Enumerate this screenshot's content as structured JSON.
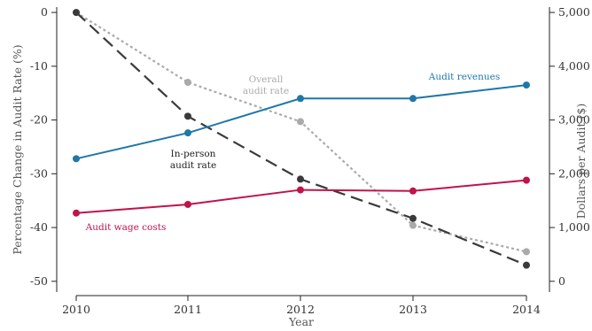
{
  "chart_data": {
    "type": "line",
    "x": [
      2010,
      2011,
      2012,
      2013,
      2014
    ],
    "xlabel": "Year",
    "ylabel_left": "Percentage Change in Audit Rate (%)",
    "ylabel_right": "Dollars per Audit ($)",
    "ylim_left": [
      -52,
      1
    ],
    "ylim_right": [
      -200,
      5100
    ],
    "yticks_left": [
      0,
      -10,
      -20,
      -30,
      -40,
      -50
    ],
    "yticks_left_labels": [
      "0",
      "-10",
      "-20",
      "-30",
      "-40",
      "-50"
    ],
    "yticks_right": [
      0,
      1000,
      2000,
      3000,
      4000,
      5000
    ],
    "yticks_right_labels": [
      "0",
      "1,000",
      "2,000",
      "3,000",
      "4,000",
      "5,000"
    ],
    "grid": false,
    "series": [
      {
        "name": "Overall audit rate",
        "axis": "left",
        "values": [
          0,
          -13,
          -20.3,
          -39.6,
          -44.5
        ],
        "color": "#aaaaaa",
        "style": "dotted"
      },
      {
        "name": "In-person audit rate",
        "axis": "left",
        "values": [
          0,
          -19.3,
          -31,
          -38.3,
          -47
        ],
        "color": "#3a3a3a",
        "style": "dashed"
      },
      {
        "name": "Audit revenues",
        "axis": "right",
        "values": [
          2280,
          2760,
          3400,
          3400,
          3650
        ],
        "color": "#1f77a8",
        "style": "solid"
      },
      {
        "name": "Audit wage costs",
        "axis": "right",
        "values": [
          1270,
          1430,
          1700,
          1680,
          1880
        ],
        "color": "#c0134a",
        "style": "solid"
      }
    ],
    "annotations": [
      {
        "lines": [
          "Overall",
          "audit rate"
        ],
        "series": "Overall audit rate"
      },
      {
        "lines": [
          "In-person",
          "audit rate"
        ],
        "series": "In-person audit rate"
      },
      {
        "lines": [
          "Audit revenues"
        ],
        "series": "Audit revenues"
      },
      {
        "lines": [
          "Audit wage costs"
        ],
        "series": "Audit wage costs"
      }
    ]
  }
}
